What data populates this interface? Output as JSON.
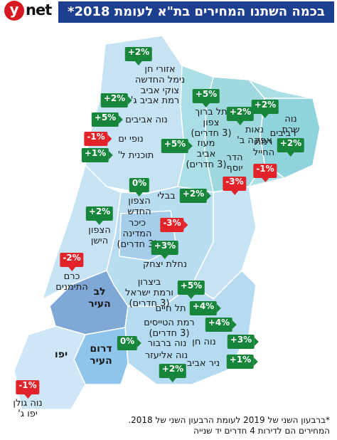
{
  "header": {
    "logo_y": "y",
    "logo_net": "net",
    "title": "בכמה השתנו המחירים בת\"א לעומת 2018*"
  },
  "colors": {
    "title_bar": "#1d3f8f",
    "increase": "#17863b",
    "decrease": "#e2232a",
    "north": "#a9dfe5",
    "center": "#c6e3f4",
    "south": "#b5dbf1",
    "lev_hair": "#7fa8d6",
    "darom_hair": "#8fc5ea",
    "yafo": "#cfe6f6"
  },
  "areas": {
    "lev_hair": "לב\nהעיר",
    "darom_hair": "דרום\nהעיר",
    "yafo": "יפו"
  },
  "neighborhoods": [
    {
      "id": "azorei-chen",
      "label": "אזורי חן\nנימל החדשה\nצוקי אביב",
      "change": "+2%",
      "dir": "up"
    },
    {
      "id": "ramat-aviv-g",
      "label": "רמת אביב ג'",
      "change": "+2%",
      "dir": "up"
    },
    {
      "id": "neve-avivim",
      "label": "נוה אביבים",
      "change": "+5%",
      "dir": "up"
    },
    {
      "id": "nofei-yam",
      "label": "נופי ים",
      "change": "-1%",
      "dir": "down"
    },
    {
      "id": "tochnit-lamed",
      "label": "תוכנית ל'",
      "change": "+1%",
      "dir": "up"
    },
    {
      "id": "tel-baruch",
      "label": "תל ברוך\nצפון\n(3 חדרים)",
      "change": "+5%",
      "dir": "up"
    },
    {
      "id": "neot-afeka",
      "label": "נאות\nאפקה ב'",
      "change": "+2%",
      "dir": "up"
    },
    {
      "id": "neve-sharet",
      "label": "נוה\nשרת",
      "change": "+2%",
      "dir": "up"
    },
    {
      "id": "ramat-hachayal",
      "label": "רמת\nהחייל",
      "change": "+2%",
      "dir": "up"
    },
    {
      "id": "ma-oz-aviv",
      "label": "מעוז\nאביב\n(3 חדרים)",
      "change": "+5%",
      "dir": "up"
    },
    {
      "id": "hadar-yosef",
      "label": "הדר\nיוסף",
      "change": "-3%",
      "dir": "down"
    },
    {
      "id": "revivim",
      "label": "רביבים",
      "change": "-1%",
      "dir": "down"
    },
    {
      "id": "tzafon-hachadash",
      "label": "הצפון\nהחדש",
      "change": "0%",
      "dir": "flat"
    },
    {
      "id": "bavli",
      "label": "בבלי",
      "change": "+2%",
      "dir": "up"
    },
    {
      "id": "tzafon-hayashan",
      "label": "הצפון\nהישן",
      "change": "+2%",
      "dir": "up"
    },
    {
      "id": "kikar-hamedina",
      "label": "כיכר\nהמדינה\n(3 חדרים)",
      "change": "-3%",
      "dir": "down"
    },
    {
      "id": "nachlat-yitzhak",
      "label": "נחלת יצחק",
      "change": "+3%",
      "dir": "up"
    },
    {
      "id": "kerem-hateimanim",
      "label": "כרם\nהתימנים",
      "change": "-2%",
      "dir": "down"
    },
    {
      "id": "bitzaron",
      "label": "ביצרון\nורמת ישראל\n(3 חדרים)",
      "change": "+5%",
      "dir": "up"
    },
    {
      "id": "tel-chaim",
      "label": "תל חיים",
      "change": "+4%",
      "dir": "up"
    },
    {
      "id": "ramat-hatayasim",
      "label": "רמת הטייסים\n(3 חדרים)",
      "change": "+4%",
      "dir": "up"
    },
    {
      "id": "neve-chen",
      "label": "נוה חן",
      "change": "+3%",
      "dir": "up"
    },
    {
      "id": "neve-barbur",
      "label": "נוה ברבור",
      "change": "0%",
      "dir": "flat"
    },
    {
      "id": "neve-eliezer",
      "label": "נוה אליעזר",
      "change": "+1%",
      "dir": "up"
    },
    {
      "id": "nir-aviv",
      "label": "ניר אביב",
      "change": "+2%",
      "dir": "up"
    },
    {
      "id": "neve-golan",
      "label": "נוה גולן\nיפו ג'",
      "change": "-1%",
      "dir": "down"
    }
  ],
  "footnote": {
    "line1": "*ברבעון השני של 2019 לעומת הרבעון השני של 2018.",
    "line2": "המחירים הם לדירות 4 חדרים יד שנייה"
  }
}
